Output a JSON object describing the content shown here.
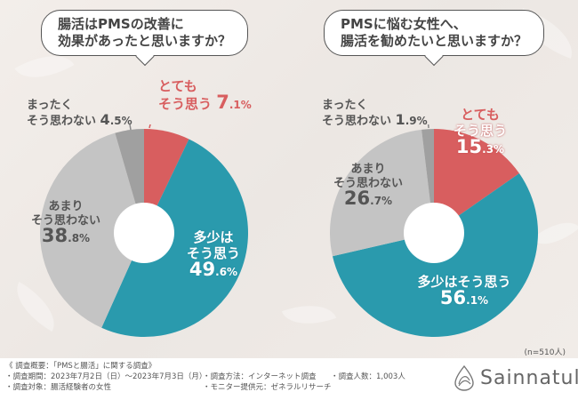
{
  "chart_data": [
    {
      "type": "pie",
      "title": "腸活はPMSの改善に効果があったと思いますか？",
      "categories": [
        "とてもそう思う",
        "多少はそう思う",
        "あまりそう思わない",
        "まったくそう思わない"
      ],
      "values": [
        7.1,
        49.6,
        38.8,
        4.5
      ],
      "colors": [
        "#d85e5f",
        "#2a9aad",
        "#c4c4c4",
        "#a0a0a0"
      ]
    },
    {
      "type": "pie",
      "title": "PMSに悩む女性へ、腸活を勧めたいと思いますか？",
      "categories": [
        "とてもそう思う",
        "多少はそう思う",
        "あまりそう思わない",
        "まったくそう思わない"
      ],
      "values": [
        15.3,
        56.1,
        26.7,
        1.9
      ],
      "colors": [
        "#d85e5f",
        "#2a9aad",
        "#c4c4c4",
        "#a0a0a0"
      ],
      "note": "(n=510人)"
    }
  ],
  "left": {
    "q1": "腸活はPMSの改善に",
    "q2": "効果があったと思いますか？",
    "very": {
      "l1": "とても",
      "l2": "そう思う",
      "num": "7",
      "dec": ".1%"
    },
    "some": {
      "l1": "多少は",
      "l2": "そう思う",
      "num": "49",
      "dec": ".6%"
    },
    "notmuch": {
      "l1": "あまり",
      "l2": "そう思わない",
      "num": "38",
      "dec": ".8%"
    },
    "notatall": {
      "l1": "まったく",
      "l2": "そう思わない",
      "num": "4",
      "dec": ".5%"
    }
  },
  "right": {
    "q1": "PMSに悩む女性へ、",
    "q2": "腸活を勧めたいと思いますか？",
    "very": {
      "l1": "とても",
      "l2": "そう思う",
      "num": "15",
      "dec": ".3%"
    },
    "some": {
      "l1": "多少はそう思う",
      "num": "56",
      "dec": ".1%"
    },
    "notmuch": {
      "l1": "あまり",
      "l2": "そう思わない",
      "num": "26",
      "dec": ".7%"
    },
    "notatall": {
      "l1": "まったく",
      "l2": "そう思わない",
      "num": "1",
      "dec": ".9%"
    },
    "n": "(n=510人)"
  },
  "footer": {
    "summary": "《 調査概要：「PMSと腸活」に関する調査》",
    "period": "・調査期間：2023年7月2日（日）～2023年7月3日（月）",
    "target": "・調査対象：腸活経験者の女性",
    "method": "・調査方法：インターネット調査",
    "provider": "・モニター提供元：ゼネラルリサーチ",
    "count": "・調査人数：1,003人"
  },
  "brand": {
    "name": "Sainnatul"
  }
}
